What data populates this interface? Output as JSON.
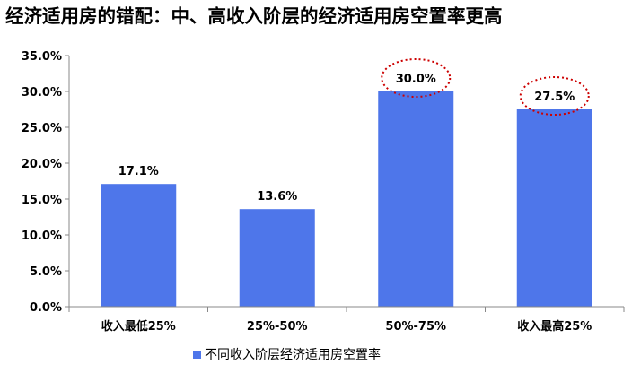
{
  "title": "经济适用房的错配：中、高收入阶层的经济适用房空置率更高",
  "chart_data": {
    "type": "bar",
    "categories": [
      "收入最低25%",
      "25%-50%",
      "50%-75%",
      "收入最高25%"
    ],
    "series": [
      {
        "name": "不同收入阶层经济适用房空置率",
        "values": [
          17.1,
          13.6,
          30.0,
          27.5
        ],
        "data_labels": [
          "17.1%",
          "13.6%",
          "30.0%",
          "27.5%"
        ],
        "color": "#4e76ea"
      }
    ],
    "y_ticks": [
      "0.0%",
      "5.0%",
      "10.0%",
      "15.0%",
      "20.0%",
      "25.0%",
      "30.0%",
      "35.0%"
    ],
    "ylim": [
      0,
      35
    ],
    "grid": false,
    "legend_position": "bottom",
    "highlighted_categories": [
      "50%-75%",
      "收入最高25%"
    ],
    "highlight_color": "#cc0000"
  }
}
